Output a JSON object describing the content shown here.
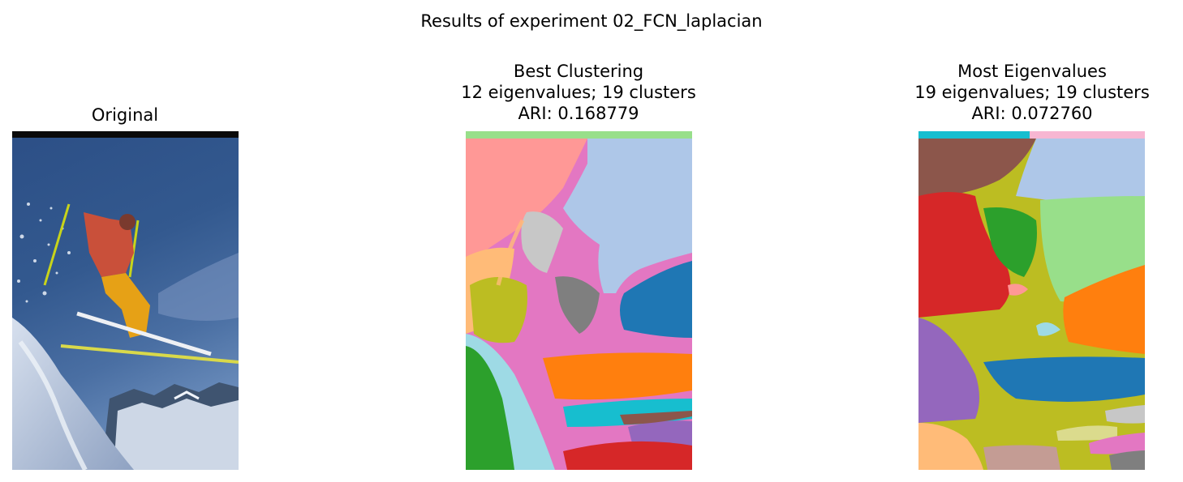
{
  "figure": {
    "suptitle": "Results of experiment 02_FCN_laplacian",
    "panels": [
      {
        "name": "original",
        "title_lines": [
          "Original"
        ]
      },
      {
        "name": "best-clustering",
        "title_lines": [
          "Best Clustering",
          "12 eigenvalues; 19 clusters",
          "ARI: 0.168779"
        ]
      },
      {
        "name": "most-eigenvalues",
        "title_lines": [
          "Most Eigenvalues",
          "19 eigenvalues; 19 clusters",
          "ARI: 0.072760"
        ]
      }
    ]
  },
  "colors": {
    "tab_blue": "#1f77b4",
    "tab_orange": "#ff7f0e",
    "tab_green": "#2ca02c",
    "tab_red": "#d62728",
    "tab_purple": "#9467bd",
    "tab_brown": "#8c564b",
    "tab_pink": "#e377c2",
    "tab_gray": "#7f7f7f",
    "tab_olive": "#bcbd22",
    "tab_cyan": "#17becf",
    "light_blue": "#aec7e8",
    "light_orange": "#ffbb78",
    "light_green": "#98df8a",
    "light_red": "#ff9896",
    "light_purple": "#c5b0d5",
    "light_brown": "#c49c94",
    "light_pink": "#f7b6d2",
    "light_gray": "#c7c7c7",
    "light_cyan": "#9edae5"
  }
}
